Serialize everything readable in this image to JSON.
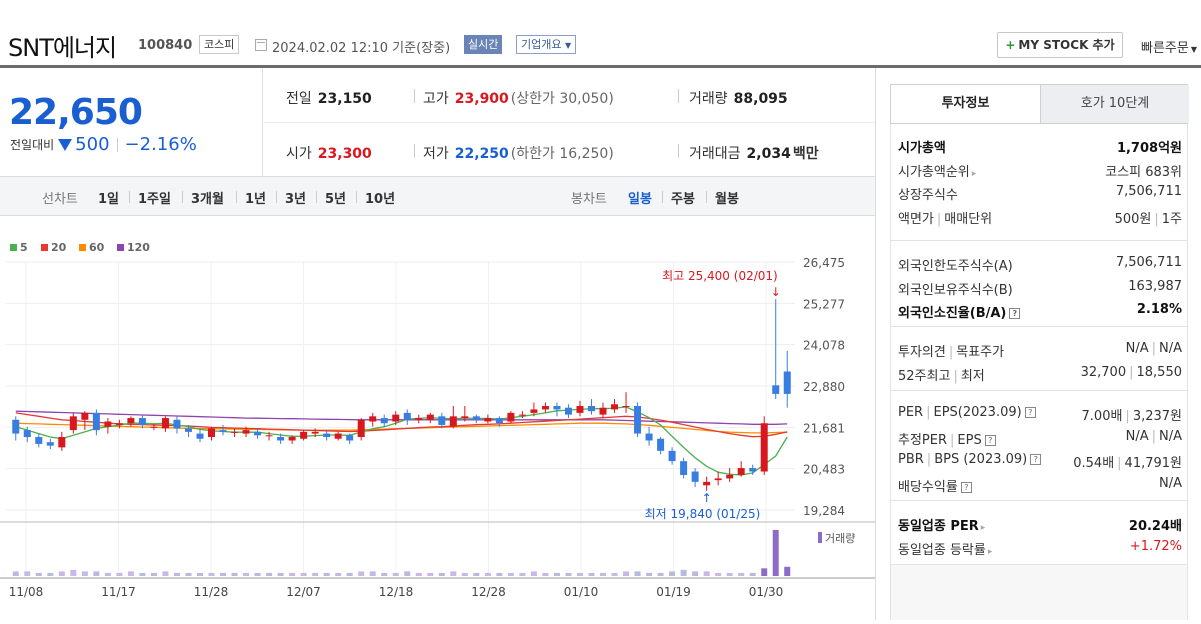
{
  "header": {
    "name": "SNT에너지",
    "code": "100840",
    "market": "코스피",
    "datetime": "2024.02.02 12:10 기준(장중)",
    "realtime": "실시간",
    "corp_info": "기업개요",
    "mystock": "MY STOCK 추가",
    "quick_order": "빠른주문"
  },
  "price": {
    "current": "22,650",
    "diff_label": "전일대비",
    "diff_value": "500",
    "diff_pct": "−2.16%"
  },
  "summary": {
    "prev_label": "전일",
    "prev_value": "23,150",
    "high_label": "고가",
    "high_value": "23,900",
    "upper_limit": "(상한가 30,050)",
    "volume_label": "거래량",
    "volume_value": "88,095",
    "open_label": "시가",
    "open_value": "23,300",
    "low_label": "저가",
    "low_value": "22,250",
    "lower_limit": "(하한가 16,250)",
    "amount_label": "거래대금",
    "amount_value": "2,034",
    "amount_unit": "백만"
  },
  "chart_tabs": {
    "line_label": "선차트",
    "line_items": [
      "1일",
      "1주일",
      "3개월",
      "1년",
      "3년",
      "5년",
      "10년"
    ],
    "candle_label": "봉차트",
    "candle_items": [
      "일봉",
      "주봉",
      "월봉"
    ],
    "active_candle": "일봉"
  },
  "chart_data": {
    "type": "candlestick",
    "legend": [
      {
        "name": "5",
        "color": "#4caf50"
      },
      {
        "name": "20",
        "color": "#e53935"
      },
      {
        "name": "60",
        "color": "#fb8c00"
      },
      {
        "name": "120",
        "color": "#8e44ad"
      }
    ],
    "y_ticks": [
      "26,475",
      "25,277",
      "24,078",
      "22,880",
      "21,681",
      "20,483",
      "19,284"
    ],
    "ylim": [
      19284,
      26475
    ],
    "x_labels": [
      "11/08",
      "11/17",
      "11/28",
      "12/07",
      "12/18",
      "12/28",
      "01/10",
      "01/19",
      "01/30"
    ],
    "annotation_high": "최고 25,400 (02/01)",
    "annotation_low": "최저 19,840 (01/25)",
    "volume_label": "거래량",
    "up_color": "#d8181e",
    "down_color": "#3a7de0",
    "candles": [
      [
        21900,
        21500,
        22000,
        21300
      ],
      [
        21600,
        21400,
        21700,
        21250
      ],
      [
        21400,
        21200,
        21500,
        21100
      ],
      [
        21250,
        21150,
        21350,
        21050
      ],
      [
        21100,
        21400,
        21550,
        21000
      ],
      [
        21600,
        22000,
        22100,
        21500
      ],
      [
        21900,
        22100,
        22150,
        21600
      ],
      [
        22100,
        21600,
        22200,
        21450
      ],
      [
        21700,
        21850,
        21950,
        21500
      ],
      [
        21750,
        21800,
        21900,
        21650
      ],
      [
        21800,
        21950,
        22000,
        21700
      ],
      [
        21950,
        21750,
        22050,
        21650
      ],
      [
        21700,
        21700,
        21800,
        21600
      ],
      [
        21650,
        21950,
        22000,
        21550
      ],
      [
        21900,
        21650,
        22000,
        21500
      ],
      [
        21650,
        21550,
        21750,
        21400
      ],
      [
        21500,
        21350,
        21650,
        21250
      ],
      [
        21400,
        21650,
        21700,
        21300
      ],
      [
        21600,
        21550,
        21750,
        21450
      ],
      [
        21550,
        21550,
        21650,
        21400
      ],
      [
        21500,
        21600,
        21700,
        21400
      ],
      [
        21550,
        21450,
        21650,
        21350
      ],
      [
        21450,
        21450,
        21550,
        21300
      ],
      [
        21400,
        21300,
        21500,
        21200
      ],
      [
        21300,
        21400,
        21450,
        21200
      ],
      [
        21350,
        21550,
        21600,
        21300
      ],
      [
        21500,
        21550,
        21650,
        21400
      ],
      [
        21500,
        21400,
        21600,
        21300
      ],
      [
        21350,
        21500,
        21550,
        21300
      ],
      [
        21450,
        21300,
        21500,
        21200
      ],
      [
        21400,
        21900,
        21950,
        21300
      ],
      [
        21850,
        22000,
        22100,
        21700
      ],
      [
        21950,
        21800,
        22050,
        21700
      ],
      [
        21850,
        22050,
        22150,
        21750
      ],
      [
        22100,
        21900,
        22200,
        21750
      ],
      [
        21900,
        21950,
        22050,
        21800
      ],
      [
        21900,
        22050,
        22100,
        21800
      ],
      [
        22000,
        21750,
        22100,
        21650
      ],
      [
        21700,
        22000,
        22300,
        21650
      ],
      [
        21950,
        22000,
        22300,
        21850
      ],
      [
        22000,
        21900,
        22050,
        21800
      ],
      [
        21850,
        21950,
        22050,
        21800
      ],
      [
        21950,
        21800,
        22000,
        21700
      ],
      [
        21850,
        22100,
        22150,
        21800
      ],
      [
        22050,
        22050,
        22150,
        21950
      ],
      [
        22100,
        22200,
        22400,
        22000
      ],
      [
        22200,
        22300,
        22400,
        22100
      ],
      [
        22300,
        22200,
        22400,
        22000
      ],
      [
        22250,
        22050,
        22350,
        21950
      ],
      [
        22100,
        22300,
        22450,
        22000
      ],
      [
        22300,
        22150,
        22500,
        22050
      ],
      [
        22050,
        22250,
        22400,
        21950
      ],
      [
        22200,
        22350,
        22500,
        22100
      ],
      [
        22300,
        22300,
        22700,
        22100
      ],
      [
        22300,
        21500,
        22400,
        21400
      ],
      [
        21500,
        21300,
        21700,
        21150
      ],
      [
        21350,
        21000,
        21400,
        20900
      ],
      [
        21000,
        20700,
        21100,
        20600
      ],
      [
        20700,
        20300,
        20800,
        20200
      ],
      [
        20400,
        20100,
        20500,
        19950
      ],
      [
        20000,
        20100,
        20250,
        19840
      ],
      [
        20150,
        20200,
        20400,
        20000
      ],
      [
        20200,
        20300,
        20500,
        20100
      ],
      [
        20300,
        20500,
        20700,
        20250
      ],
      [
        20500,
        20400,
        20600,
        20300
      ],
      [
        20400,
        21800,
        22000,
        20300
      ],
      [
        22900,
        22650,
        25400,
        22500
      ],
      [
        23300,
        22650,
        23900,
        22250
      ]
    ],
    "ma5": [
      21700,
      21600,
      21500,
      21400,
      21350,
      21450,
      21550,
      21650,
      21700,
      21750,
      21800,
      21800,
      21780,
      21800,
      21750,
      21700,
      21620,
      21580,
      21560,
      21540,
      21540,
      21540,
      21500,
      21460,
      21420,
      21420,
      21440,
      21460,
      21460,
      21450,
      21550,
      21640,
      21700,
      21800,
      21920,
      21940,
      21960,
      21940,
      21930,
      21950,
      21940,
      21940,
      21920,
      21960,
      22000,
      22050,
      22100,
      22160,
      22180,
      22200,
      22220,
      22220,
      22240,
      22270,
      22130,
      21960,
      21750,
      21420,
      21100,
      20800,
      20550,
      20380,
      20320,
      20300,
      20360,
      20600,
      20850,
      21400
    ],
    "ma20": [
      22100,
      22050,
      22000,
      21950,
      21900,
      21880,
      21850,
      21830,
      21800,
      21780,
      21770,
      21760,
      21750,
      21740,
      21730,
      21720,
      21700,
      21680,
      21670,
      21660,
      21650,
      21640,
      21630,
      21620,
      21610,
      21600,
      21590,
      21580,
      21570,
      21560,
      21570,
      21590,
      21610,
      21630,
      21650,
      21670,
      21690,
      21700,
      21720,
      21740,
      21760,
      21770,
      21780,
      21800,
      21820,
      21840,
      21860,
      21880,
      21900,
      21920,
      21940,
      21960,
      21980,
      22000,
      21980,
      21940,
      21890,
      21830,
      21760,
      21690,
      21620,
      21560,
      21500,
      21450,
      21410,
      21420,
      21480,
      21550
    ],
    "ma60": [
      21800,
      21790,
      21780,
      21770,
      21760,
      21750,
      21740,
      21730,
      21720,
      21710,
      21700,
      21690,
      21680,
      21670,
      21660,
      21650,
      21645,
      21640,
      21635,
      21630,
      21625,
      21620,
      21615,
      21610,
      21605,
      21600,
      21600,
      21600,
      21600,
      21600,
      21610,
      21620,
      21630,
      21640,
      21650,
      21660,
      21670,
      21680,
      21690,
      21700,
      21710,
      21720,
      21730,
      21740,
      21750,
      21760,
      21770,
      21780,
      21790,
      21800,
      21800,
      21800,
      21790,
      21780,
      21760,
      21740,
      21710,
      21680,
      21650,
      21620,
      21590,
      21560,
      21540,
      21530,
      21520,
      21520,
      21530,
      21540
    ],
    "ma120": [
      22150,
      22140,
      22130,
      22120,
      22110,
      22100,
      22090,
      22080,
      22070,
      22060,
      22050,
      22040,
      22030,
      22020,
      22010,
      22000,
      21990,
      21980,
      21970,
      21960,
      21950,
      21945,
      21940,
      21935,
      21930,
      21925,
      21920,
      21915,
      21910,
      21905,
      21900,
      21900,
      21900,
      21900,
      21900,
      21900,
      21900,
      21900,
      21900,
      21900,
      21900,
      21900,
      21900,
      21900,
      21900,
      21900,
      21900,
      21900,
      21900,
      21900,
      21900,
      21900,
      21890,
      21880,
      21870,
      21860,
      21850,
      21840,
      21830,
      21820,
      21810,
      21800,
      21790,
      21780,
      21770,
      21770,
      21770,
      21780
    ],
    "volumes": [
      3,
      3,
      2,
      2,
      3,
      4,
      3,
      3,
      2,
      2,
      3,
      2,
      2,
      3,
      2,
      2,
      2,
      2,
      2,
      2,
      2,
      2,
      2,
      2,
      2,
      2,
      2,
      2,
      2,
      2,
      3,
      3,
      2,
      2,
      3,
      2,
      2,
      2,
      3,
      2,
      2,
      2,
      2,
      2,
      2,
      3,
      2,
      2,
      2,
      2,
      2,
      2,
      2,
      3,
      3,
      2,
      2,
      3,
      4,
      3,
      3,
      2,
      2,
      2,
      2,
      5,
      30,
      6
    ],
    "volume_colors": [
      0,
      1,
      0,
      0,
      1,
      1,
      1,
      0,
      1,
      1,
      1,
      0,
      0,
      1,
      0,
      0,
      0,
      1,
      0,
      0,
      1,
      0,
      0,
      0,
      1,
      1,
      1,
      0,
      1,
      0,
      1,
      1,
      0,
      1,
      0,
      1,
      1,
      0,
      1,
      1,
      0,
      1,
      0,
      1,
      1,
      1,
      1,
      0,
      0,
      1,
      0,
      1,
      1,
      1,
      0,
      0,
      0,
      0,
      0,
      0,
      1,
      1,
      1,
      1,
      0,
      1,
      0,
      0
    ]
  },
  "right_panel": {
    "tab1": "투자정보",
    "tab2": "호가 10단계",
    "g1": [
      {
        "k": "시가총액",
        "v": "1,708억원",
        "bold": true
      },
      {
        "k": "시가총액순위",
        "v": "코스피 683위",
        "arrow": true
      },
      {
        "k": "상장주식수",
        "v": "7,506,711"
      },
      {
        "k": "액면가",
        "k2": "매매단위",
        "v": "500원",
        "v2": "1주"
      }
    ],
    "g2": [
      {
        "k": "외국인한도주식수(A)",
        "v": "7,506,711"
      },
      {
        "k": "외국인보유주식수(B)",
        "v": "163,987"
      },
      {
        "k": "외국인소진율(B/A)",
        "v": "2.18%",
        "bold": true,
        "q": true
      }
    ],
    "g3": [
      {
        "k": "투자의견",
        "k2": "목표주가",
        "v": "N/A",
        "v2": "N/A"
      },
      {
        "k": "52주최고",
        "k2": "최저",
        "v": "32,700",
        "v2": "18,550"
      }
    ],
    "g4": [
      {
        "k": "PER",
        "k2": "EPS(2023.09)",
        "v": "7.00배",
        "v2": "3,237원",
        "q": true
      },
      {
        "k": "추정PER",
        "k2": "EPS",
        "v": "N/A",
        "v2": "N/A",
        "q": true
      },
      {
        "k": "PBR",
        "k2": "BPS (2023.09)",
        "v": "0.54배",
        "v2": "41,791원",
        "q": true
      },
      {
        "k": "배당수익률",
        "v": "N/A",
        "q": true
      }
    ],
    "g5": [
      {
        "k": "동일업종 PER",
        "v": "20.24배",
        "bold": true,
        "arrow": true
      },
      {
        "k": "동일업종 등락률",
        "v": "+1.72%",
        "red": true,
        "arrow": true
      }
    ]
  }
}
